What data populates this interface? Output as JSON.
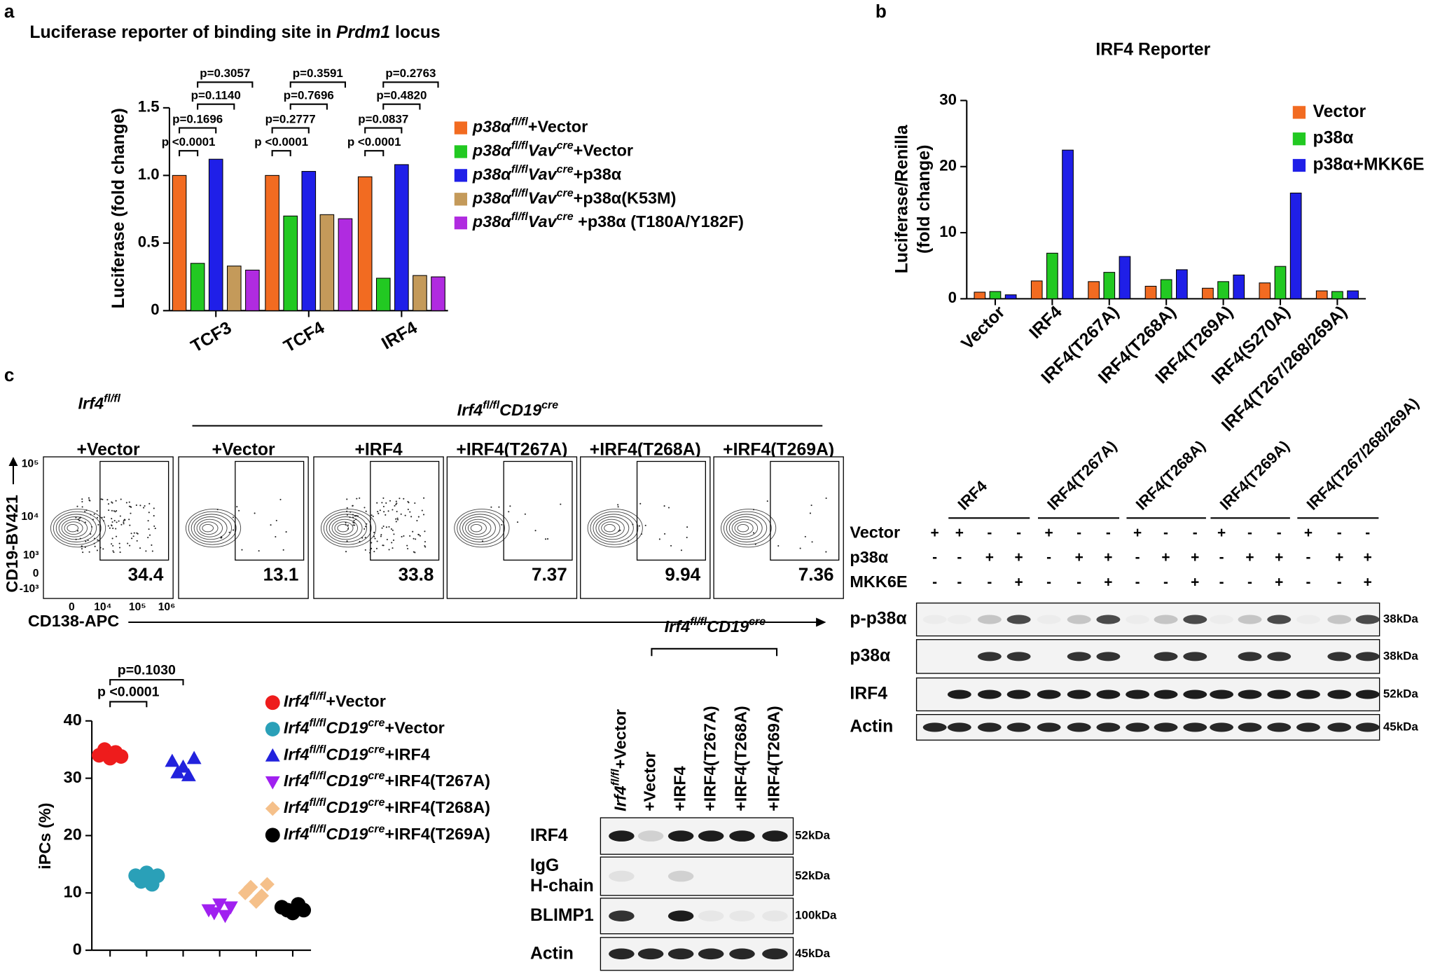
{
  "panel_labels": [
    "a",
    "b",
    "c"
  ],
  "chart_data": [
    {
      "type": "bar",
      "title": [
        "Luciferase reporter of binding site in ",
        "Prdm1",
        " locus"
      ],
      "ylabel": "Luciferase (fold change)",
      "categories": [
        "TCF3",
        "TCF4",
        "IRF4"
      ],
      "series": [
        {
          "name": [
            "p38α",
            "fl/fl",
            "+Vector"
          ],
          "color": "#f26b21",
          "values": [
            1.0,
            1.0,
            0.99
          ]
        },
        {
          "name": [
            "p38α",
            "fl/fl",
            "Vav",
            "cre",
            "+Vector"
          ],
          "color": "#22c922",
          "values": [
            0.35,
            0.7,
            0.24
          ]
        },
        {
          "name": [
            "p38α",
            "fl/fl",
            "Vav",
            "cre",
            "+p38α"
          ],
          "color": "#1f1fe8",
          "values": [
            1.12,
            1.03,
            1.08
          ]
        },
        {
          "name": [
            "p38α",
            "fl/fl",
            "Vav",
            "cre",
            "+p38α(K53M)"
          ],
          "color": "#c49a5a",
          "values": [
            0.33,
            0.71,
            0.26
          ]
        },
        {
          "name": [
            "p38α",
            "fl/fl",
            "Vav",
            "cre",
            " +p38α (T180A/Y182F)"
          ],
          "color": "#b02be0",
          "values": [
            0.3,
            0.68,
            0.25
          ]
        }
      ],
      "ylim": [
        0,
        1.5
      ],
      "yticks": [
        0,
        0.5,
        {
          "value": 1,
          "label": "1.0"
        },
        1.5
      ],
      "annotations": [
        [
          "p <0.0001",
          "p=0.1696",
          "p=0.1140",
          "p=0.3057"
        ],
        [
          "p <0.0001",
          "p=0.2777",
          "p=0.7696",
          "p=0.3591"
        ],
        [
          "p <0.0001",
          "p=0.0837",
          "p=0.4820",
          "p=0.2763"
        ]
      ]
    },
    {
      "type": "bar",
      "title": "IRF4 Reporter",
      "ylabel": [
        "Luciferase/Renilla",
        "(fold change)"
      ],
      "categories": [
        "Vector",
        "IRF4",
        "IRF4(T267A)",
        "IRF4(T268A)",
        "IRF4(T269A)",
        "IRF4(S270A)",
        "IRF4(T267/268/269A)"
      ],
      "series": [
        {
          "name": "Vector",
          "color": "#f26b21",
          "values": [
            1.0,
            2.7,
            2.6,
            1.9,
            1.6,
            2.4,
            1.2
          ]
        },
        {
          "name": "p38α",
          "color": "#22c922",
          "values": [
            1.1,
            6.9,
            4.0,
            2.9,
            2.6,
            4.9,
            1.1
          ]
        },
        {
          "name": "p38α+MKK6E",
          "color": "#1f1fe8",
          "values": [
            0.6,
            22.5,
            6.4,
            4.4,
            3.6,
            16.0,
            1.2
          ]
        }
      ],
      "ylim": [
        0,
        30
      ],
      "yticks": [
        0,
        10,
        20,
        30
      ]
    },
    {
      "type": "scatter",
      "ylabel": "iPCs (%)",
      "series": [
        {
          "name": [
            "Irf4",
            "fl/fl",
            "+Vector"
          ],
          "color": "#ee1c1c",
          "marker": "circle",
          "values": [
            34,
            35,
            33.5,
            34.5,
            33.8
          ]
        },
        {
          "name": [
            "Irf4",
            "fl/fl",
            "CD19",
            "cre",
            "+Vector"
          ],
          "color": "#2aa0b8",
          "marker": "circle",
          "values": [
            13,
            12,
            13.5,
            11.5,
            13
          ]
        },
        {
          "name": [
            "Irf4",
            "fl/fl",
            "CD19",
            "cre",
            "+IRF4"
          ],
          "color": "#2222dd",
          "marker": "triangle",
          "values": [
            33,
            31,
            32,
            30.5,
            33.5
          ]
        },
        {
          "name": [
            "Irf4",
            "fl/fl",
            "CD19",
            "cre",
            "+IRF4(T267A)"
          ],
          "color": "#a020f0",
          "marker": "triangle-down",
          "values": [
            7,
            6.5,
            8,
            6,
            7.5
          ]
        },
        {
          "name": [
            "Irf4",
            "fl/fl",
            "CD19",
            "cre",
            "+IRF4(T268A)"
          ],
          "color": "#f5c08a",
          "marker": "diamond",
          "values": [
            10,
            11,
            8.5,
            9.5,
            11.5
          ]
        },
        {
          "name": [
            "Irf4",
            "fl/fl",
            "CD19",
            "cre",
            "+IRF4(T269A)"
          ],
          "color": "#000000",
          "marker": "circle",
          "values": [
            7.5,
            7,
            6.5,
            8,
            7
          ]
        }
      ],
      "ylim": [
        0,
        40
      ],
      "yticks": [
        0,
        10,
        20,
        30,
        40
      ],
      "annotations": [
        "p <0.0001",
        "p=0.1030"
      ]
    }
  ],
  "flow": {
    "headers": [
      [
        "Irf4",
        "fl/fl"
      ],
      [
        "Irf4",
        "fl/fl",
        "CD19",
        "cre"
      ]
    ],
    "columns": [
      "+Vector",
      "+Vector",
      "+IRF4",
      "+IRF4(T267A)",
      "+IRF4(T268A)",
      "+IRF4(T269A)"
    ],
    "percentages": [
      "34.4",
      "13.1",
      "33.8",
      "7.37",
      "9.94",
      "7.36"
    ],
    "ylabel": "CD19-BV421",
    "xlabel": "CD138-APC",
    "yticks": [
      "10⁵",
      "10⁴",
      "10³",
      "0",
      "-10³"
    ],
    "xticks": [
      "0",
      "10⁴",
      "10⁵",
      "10⁶"
    ]
  },
  "blot_p38": {
    "groups": [
      "IRF4",
      "IRF4(T267A)",
      "IRF4(T268A)",
      "IRF4(T269A)",
      "IRF4(T267/268/269A)"
    ],
    "conditions": [
      {
        "label": "Vector",
        "signs": [
          "+",
          "+",
          "-",
          "-",
          "+",
          "-",
          "-",
          "+",
          "-",
          "-",
          "+",
          "-",
          "-",
          "+",
          "-",
          "-"
        ]
      },
      {
        "label": "p38α",
        "signs": [
          "-",
          "-",
          "+",
          "+",
          "-",
          "+",
          "+",
          "-",
          "+",
          "+",
          "-",
          "+",
          "+",
          "-",
          "+",
          "+"
        ]
      },
      {
        "label": "MKK6E",
        "signs": [
          "-",
          "-",
          "-",
          "+",
          "-",
          "-",
          "+",
          "-",
          "-",
          "+",
          "-",
          "-",
          "+",
          "-",
          "-",
          "+"
        ]
      }
    ],
    "rows": [
      {
        "label": "p-p38α",
        "marker": "38kDa"
      },
      {
        "label": "p38α",
        "marker": "38kDa"
      },
      {
        "label": "IRF4",
        "marker": "52kDa"
      },
      {
        "label": "Actin",
        "marker": "45kDa"
      }
    ]
  },
  "blot_blimp": {
    "header": [
      "Irf4",
      "fl/fl",
      "CD19",
      "cre"
    ],
    "lanes": [
      [
        "Irf4",
        "fl/fl",
        "+Vector"
      ],
      "+Vector",
      "+IRF4",
      "+IRF4(T267A)",
      "+IRF4(T268A)",
      "+IRF4(T269A)"
    ],
    "rows": [
      {
        "label": [
          "IRF4"
        ],
        "marker": "52kDa"
      },
      {
        "label": [
          "IgG",
          "H-chain"
        ],
        "marker": "52kDa"
      },
      {
        "label": [
          "BLIMP1"
        ],
        "marker": "100kDa"
      },
      {
        "label": [
          "Actin"
        ],
        "marker": "45kDa"
      }
    ]
  }
}
